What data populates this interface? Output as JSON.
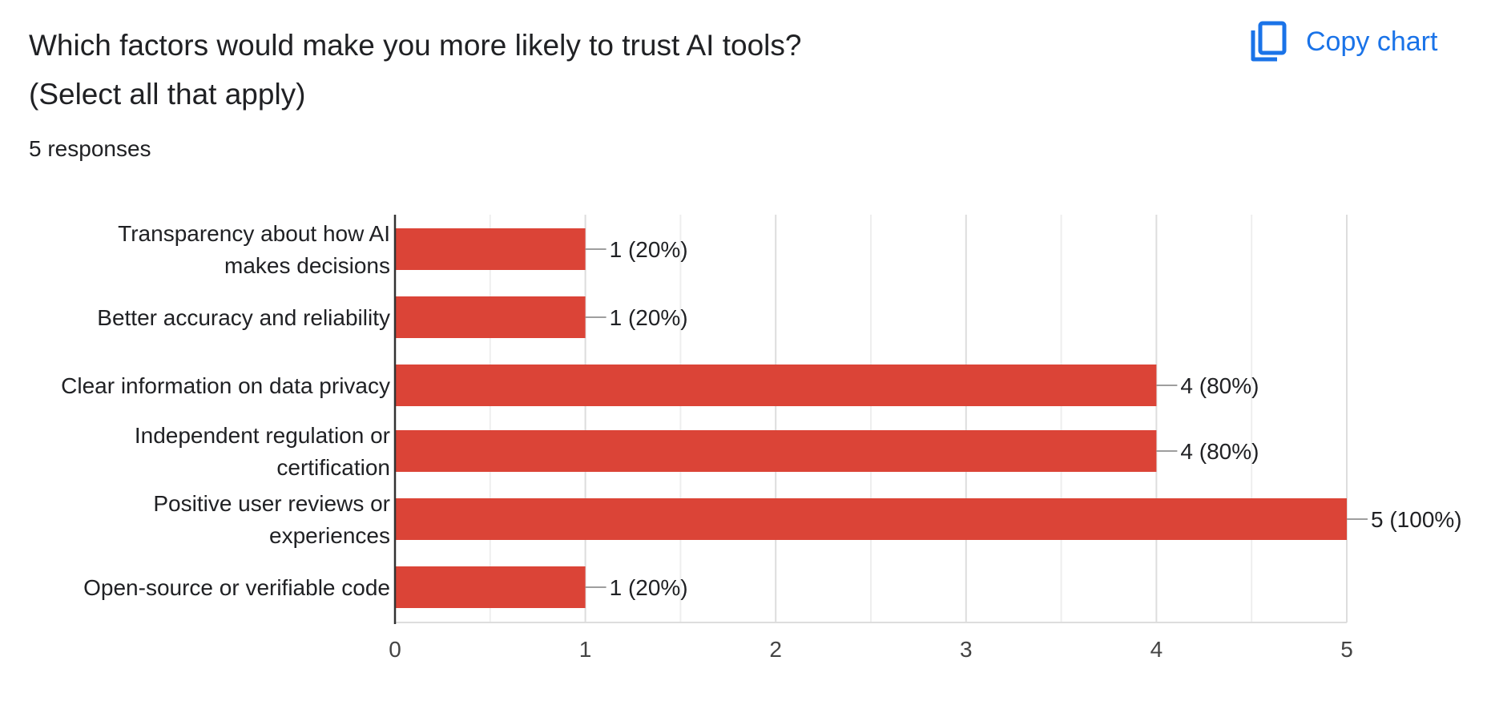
{
  "question": {
    "title_line1": "Which factors would make you more likely to trust AI tools?",
    "title_line2": "(Select all that apply)",
    "responses": "5 responses"
  },
  "toolbar": {
    "copy_label": "Copy chart",
    "copy_icon": "copy-icon",
    "accent_color": "#1a73e8"
  },
  "chart_data": {
    "type": "bar",
    "orientation": "horizontal",
    "categories": [
      [
        "Transparency about how AI",
        "makes decisions"
      ],
      [
        "Better accuracy and reliability"
      ],
      [
        "Clear information on data privacy"
      ],
      [
        "Independent regulation or",
        "certification"
      ],
      [
        "Positive user reviews or",
        "experiences"
      ],
      [
        "Open-source or verifiable code"
      ]
    ],
    "values": [
      1,
      1,
      4,
      4,
      5,
      1
    ],
    "data_labels": [
      "1 (20%)",
      "1 (20%)",
      "4 (80%)",
      "4 (80%)",
      "5 (100%)",
      "1 (20%)"
    ],
    "xlim": [
      0,
      5
    ],
    "xticks": [
      "0",
      "1",
      "2",
      "3",
      "4",
      "5"
    ],
    "bar_color": "#db4437",
    "grid": true
  }
}
